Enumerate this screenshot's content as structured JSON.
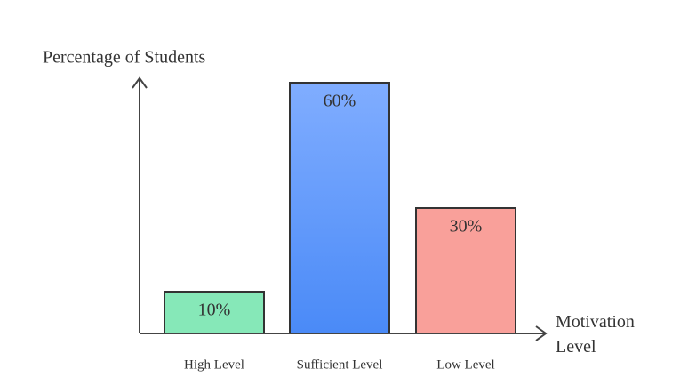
{
  "chart_data": {
    "type": "bar",
    "y_label": "Percentage of Students",
    "x_label": "Motivation Level",
    "categories": [
      "High Level",
      "Sufficient Level",
      "Low Level"
    ],
    "values": [
      10,
      60,
      30
    ],
    "value_labels": [
      "10%",
      "60%",
      "30%"
    ],
    "colors": [
      "#86e8b8",
      "#5b95fb",
      "#f9a09a"
    ],
    "ylim": [
      0,
      60
    ]
  }
}
